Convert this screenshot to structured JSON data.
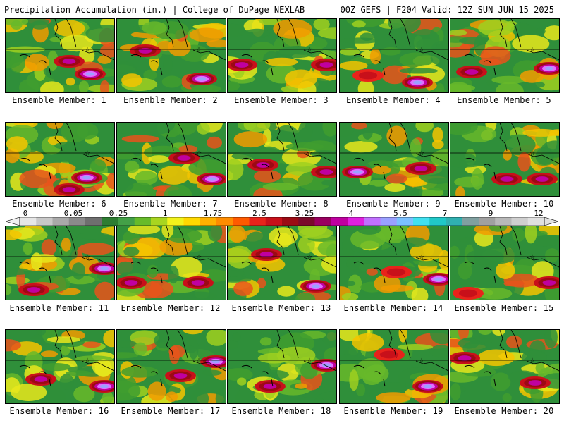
{
  "header": {
    "title_left": "Precipitation Accumulation (in.) | College of DuPage NEXLAB",
    "title_right": "00Z GEFS | F204 Valid: 12Z SUN JUN 15 2025"
  },
  "colorbar": {
    "labels": [
      "0",
      "0.05",
      "0.25",
      "1",
      "1.75",
      "2.5",
      "3.25",
      "4",
      "5.5",
      "7",
      "9",
      "12"
    ],
    "colors": [
      "#e6e6e6",
      "#c8c8c8",
      "#a9a9a9",
      "#8a8a8a",
      "#6f6f6f",
      "#2e7d32",
      "#43a047",
      "#66bb2a",
      "#a8d520",
      "#f2f21b",
      "#ffd800",
      "#ffb000",
      "#ff8c00",
      "#ff5a00",
      "#e8231b",
      "#c8101a",
      "#9c0a14",
      "#7a0a2a",
      "#9a0060",
      "#c000a0",
      "#e020e0",
      "#c070ff",
      "#9aa0ff",
      "#7ac0ff",
      "#40e0f0",
      "#20c8c8",
      "#30b0b0",
      "#80a0a0",
      "#a0a0a0",
      "#b8b8b8",
      "#cfcfcf",
      "#e0e0e0"
    ]
  },
  "panels": [
    {
      "label": "Ensemble Member: 1",
      "hot": [
        [
          120,
          78,
          2
        ],
        [
          90,
          60,
          1
        ]
      ]
    },
    {
      "label": "Ensemble Member: 2",
      "hot": [
        [
          120,
          85,
          2
        ],
        [
          40,
          45,
          1
        ]
      ]
    },
    {
      "label": "Ensemble Member: 3",
      "hot": [
        [
          140,
          65,
          1
        ],
        [
          20,
          65,
          1
        ]
      ]
    },
    {
      "label": "Ensemble Member: 4",
      "hot": [
        [
          110,
          90,
          2
        ],
        [
          40,
          80,
          0
        ]
      ]
    },
    {
      "label": "Ensemble Member: 5",
      "hot": [
        [
          140,
          70,
          2
        ],
        [
          30,
          75,
          1
        ]
      ]
    },
    {
      "label": "Ensemble Member: 6",
      "hot": [
        [
          115,
          78,
          2
        ],
        [
          90,
          95,
          1
        ]
      ]
    },
    {
      "label": "Ensemble Member: 7",
      "hot": [
        [
          135,
          80,
          2
        ],
        [
          95,
          50,
          1
        ]
      ]
    },
    {
      "label": "Ensemble Member: 8",
      "hot": [
        [
          50,
          60,
          1
        ],
        [
          140,
          70,
          1
        ]
      ]
    },
    {
      "label": "Ensemble Member: 9",
      "hot": [
        [
          25,
          70,
          2
        ],
        [
          115,
          65,
          1
        ]
      ]
    },
    {
      "label": "Ensemble Member: 10",
      "hot": [
        [
          130,
          80,
          1
        ],
        [
          80,
          80,
          1
        ]
      ]
    },
    {
      "label": "Ensemble Member: 11",
      "hot": [
        [
          140,
          60,
          2
        ],
        [
          40,
          90,
          1
        ]
      ]
    },
    {
      "label": "Ensemble Member: 12",
      "hot": [
        [
          115,
          80,
          1
        ],
        [
          20,
          80,
          1
        ]
      ]
    },
    {
      "label": "Ensemble Member: 13",
      "hot": [
        [
          125,
          85,
          2
        ],
        [
          55,
          40,
          1
        ]
      ]
    },
    {
      "label": "Ensemble Member: 14",
      "hot": [
        [
          140,
          75,
          2
        ],
        [
          80,
          65,
          0
        ]
      ]
    },
    {
      "label": "Ensemble Member: 15",
      "hot": [
        [
          140,
          80,
          1
        ],
        [
          25,
          95,
          0
        ]
      ]
    },
    {
      "label": "Ensemble Member: 16",
      "hot": [
        [
          140,
          80,
          2
        ],
        [
          50,
          70,
          1
        ]
      ]
    },
    {
      "label": "Ensemble Member: 17",
      "hot": [
        [
          140,
          45,
          2
        ],
        [
          90,
          65,
          1
        ]
      ]
    },
    {
      "label": "Ensemble Member: 18",
      "hot": [
        [
          140,
          50,
          2
        ],
        [
          60,
          80,
          1
        ]
      ]
    },
    {
      "label": "Ensemble Member: 19",
      "hot": [
        [
          125,
          80,
          2
        ],
        [
          70,
          35,
          0
        ]
      ]
    },
    {
      "label": "Ensemble Member: 20",
      "hot": [
        [
          120,
          75,
          1
        ],
        [
          20,
          40,
          1
        ]
      ]
    }
  ]
}
